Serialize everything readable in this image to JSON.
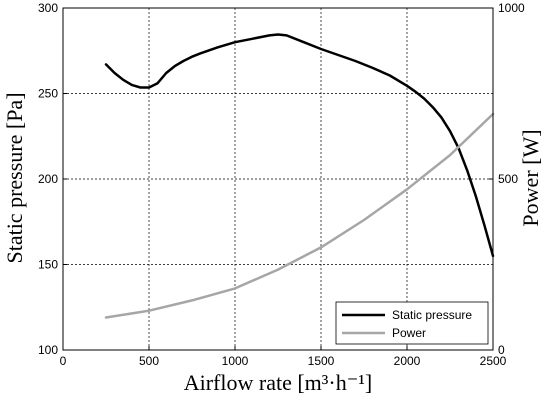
{
  "chart_data": {
    "type": "line",
    "xlabel": "Airflow rate [m³·h⁻¹]",
    "ylabel_left": "Static pressure [Pa]",
    "ylabel_right": "Power [W]",
    "xlim": [
      0,
      2500
    ],
    "ylim_left": [
      100,
      300
    ],
    "ylim_right": [
      0,
      1000
    ],
    "x_ticks": [
      0,
      500,
      1000,
      1500,
      2000,
      2500
    ],
    "y_left_ticks": [
      100,
      150,
      200,
      250,
      300
    ],
    "y_right_ticks": [
      0,
      500,
      1000
    ],
    "grid": true,
    "legend_position": "bottom-right",
    "series": [
      {
        "name": "Static pressure",
        "axis": "left",
        "color": "#000000",
        "x": [
          250,
          300,
          350,
          400,
          450,
          500,
          550,
          600,
          650,
          700,
          750,
          800,
          900,
          1000,
          1100,
          1200,
          1250,
          1300,
          1400,
          1500,
          1600,
          1700,
          1800,
          1900,
          2000,
          2050,
          2100,
          2150,
          2200,
          2250,
          2300,
          2350,
          2400,
          2450,
          2500
        ],
        "y": [
          267,
          262,
          258,
          255,
          253.5,
          253.5,
          256,
          262,
          266,
          269,
          271.5,
          273.5,
          277,
          280,
          282,
          284,
          284.5,
          284,
          280,
          276,
          272.5,
          269,
          265,
          260.5,
          254.5,
          251,
          247,
          242,
          236,
          228,
          218,
          205,
          190,
          173,
          155
        ]
      },
      {
        "name": "Power",
        "axis": "right",
        "color": "#a6a6a6",
        "x": [
          250,
          500,
          750,
          1000,
          1250,
          1500,
          1750,
          2000,
          2250,
          2500
        ],
        "y": [
          95,
          115,
          145,
          180,
          235,
          300,
          380,
          470,
          570,
          690
        ]
      }
    ]
  }
}
